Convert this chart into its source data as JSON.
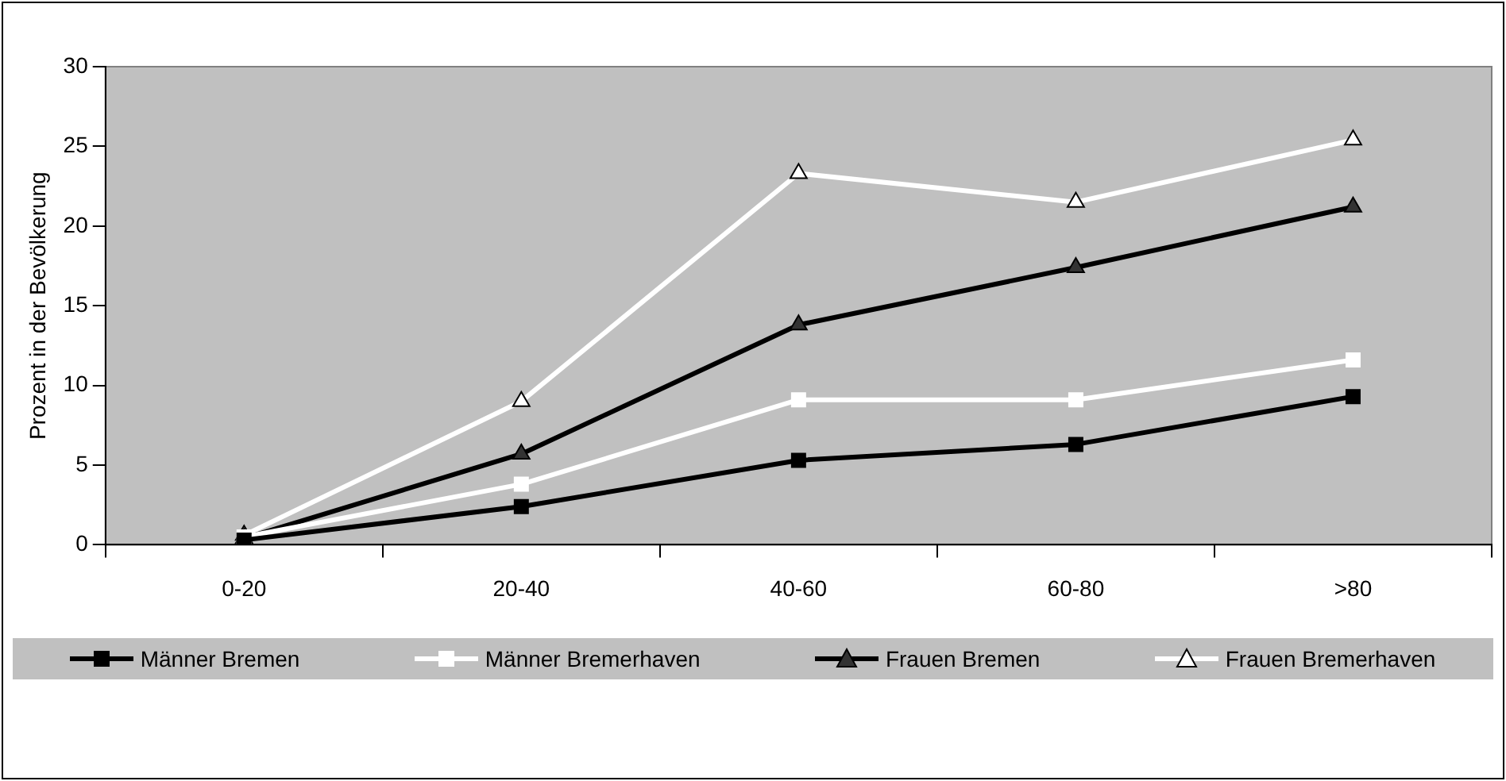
{
  "chart_data": {
    "type": "line",
    "ylabel": "Prozent in der Bevölkerung",
    "categories": [
      "0-20",
      "20-40",
      "40-60",
      "60-80",
      ">80"
    ],
    "series": [
      {
        "name": "Männer Bremen",
        "color": "#000000",
        "marker": "square",
        "values": [
          0.3,
          2.4,
          5.3,
          6.3,
          9.3
        ]
      },
      {
        "name": "Männer Bremerhaven",
        "color": "#ffffff",
        "marker": "square",
        "values": [
          0.5,
          3.8,
          9.1,
          9.1,
          11.6
        ]
      },
      {
        "name": "Frauen Bremen",
        "color": "#000000",
        "marker": "triangle",
        "values": [
          0.4,
          5.7,
          13.8,
          17.4,
          21.2
        ]
      },
      {
        "name": "Frauen Bremerhaven",
        "color": "#ffffff",
        "marker": "triangle",
        "values": [
          0.6,
          9.0,
          23.3,
          21.5,
          25.4
        ]
      }
    ],
    "ylim": [
      0,
      30
    ],
    "yticks": [
      0,
      5,
      10,
      15,
      20,
      25,
      30
    ],
    "grid": false,
    "legend": "bottom"
  }
}
